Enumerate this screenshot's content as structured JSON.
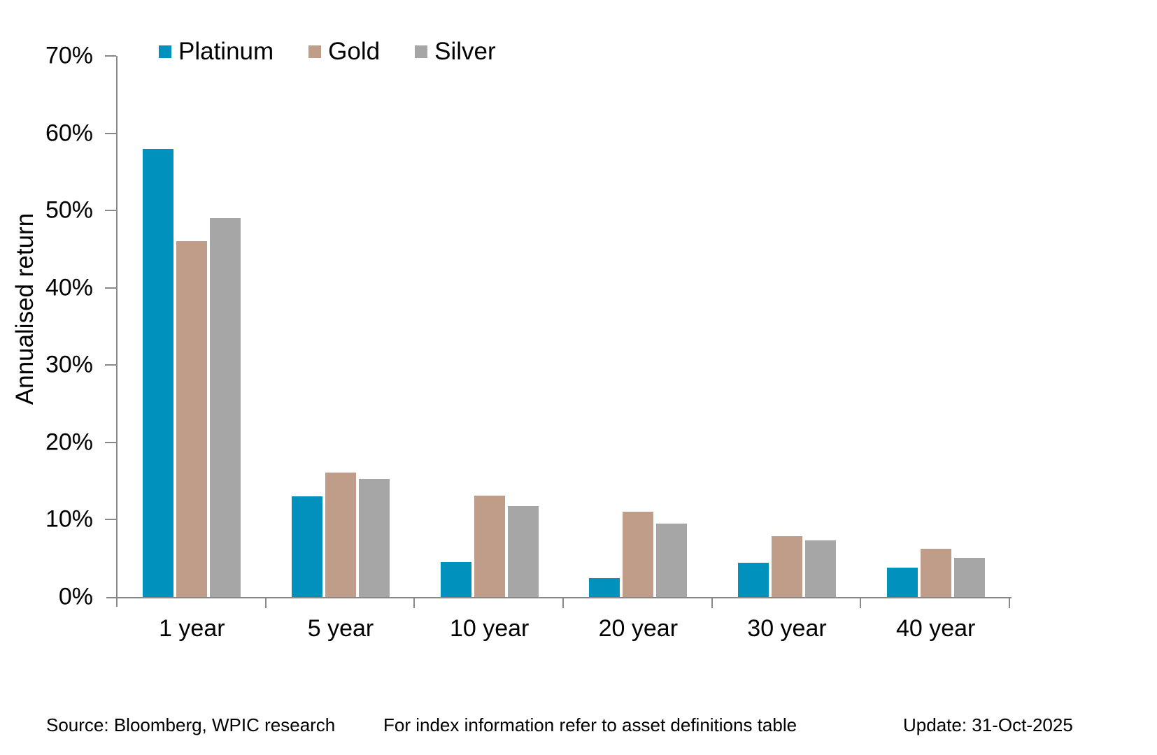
{
  "chart_data": {
    "type": "bar",
    "title": "",
    "xlabel": "",
    "ylabel": "Annualised return",
    "ylim": [
      0,
      70
    ],
    "ytick_step": 10,
    "ytick_labels": [
      "0%",
      "10%",
      "20%",
      "30%",
      "40%",
      "50%",
      "60%",
      "70%"
    ],
    "grid": false,
    "legend_position": "top-left",
    "categories": [
      "1 year",
      "5 year",
      "10 year",
      "20 year",
      "30 year",
      "40 year"
    ],
    "series": [
      {
        "name": "Platinum",
        "color": "#0091BC",
        "values": [
          58,
          13,
          4.5,
          2.4,
          4.4,
          3.8
        ]
      },
      {
        "name": "Gold",
        "color": "#BF9D89",
        "values": [
          46,
          16.1,
          13.1,
          11,
          7.9,
          6.2
        ]
      },
      {
        "name": "Silver",
        "color": "#A6A6A6",
        "values": [
          49,
          15.3,
          11.8,
          9.5,
          7.3,
          5.1
        ]
      }
    ],
    "axis_color": "#898989"
  },
  "footer": {
    "source": "Source: Bloomberg, WPIC research",
    "note": "For index information refer to asset definitions table",
    "update": "Update: 31-Oct-2025"
  }
}
